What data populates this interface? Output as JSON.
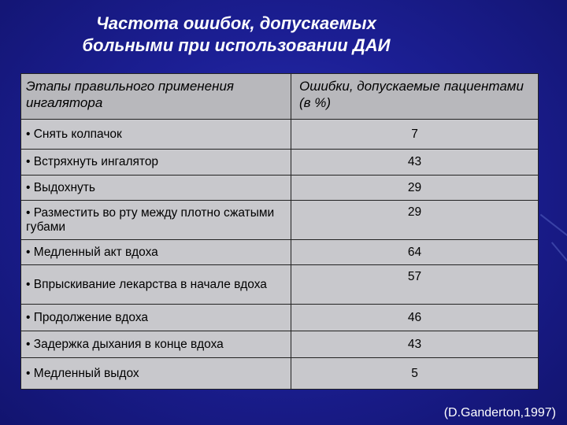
{
  "title": {
    "line1": "Частота ошибок, допускаемых",
    "line2": "больными при использовании ДАИ"
  },
  "table": {
    "headers": [
      "Этапы правильного применения ингалятора",
      "Ошибки, допускаемые пациентами (в %)"
    ],
    "rows": [
      {
        "step": "• Снять колпачок",
        "value": "7"
      },
      {
        "step": "• Встряхнуть ингалятор",
        "value": "43"
      },
      {
        "step": "• Выдохнуть",
        "value": "29"
      },
      {
        "step": "• Разместить во рту между плотно сжатыми губами",
        "value": "29"
      },
      {
        "step": "• Медленный акт вдоха",
        "value": "64"
      },
      {
        "step": "• Впрыскивание лекарства в начале вдоха",
        "value": "57"
      },
      {
        "step": "• Продолжение вдоха",
        "value": "46"
      },
      {
        "step": "• Задержка дыхания в конце вдоха",
        "value": "43"
      },
      {
        "step": "• Медленный выдох",
        "value": "5"
      }
    ]
  },
  "citation": "(D.Ganderton,1997)"
}
